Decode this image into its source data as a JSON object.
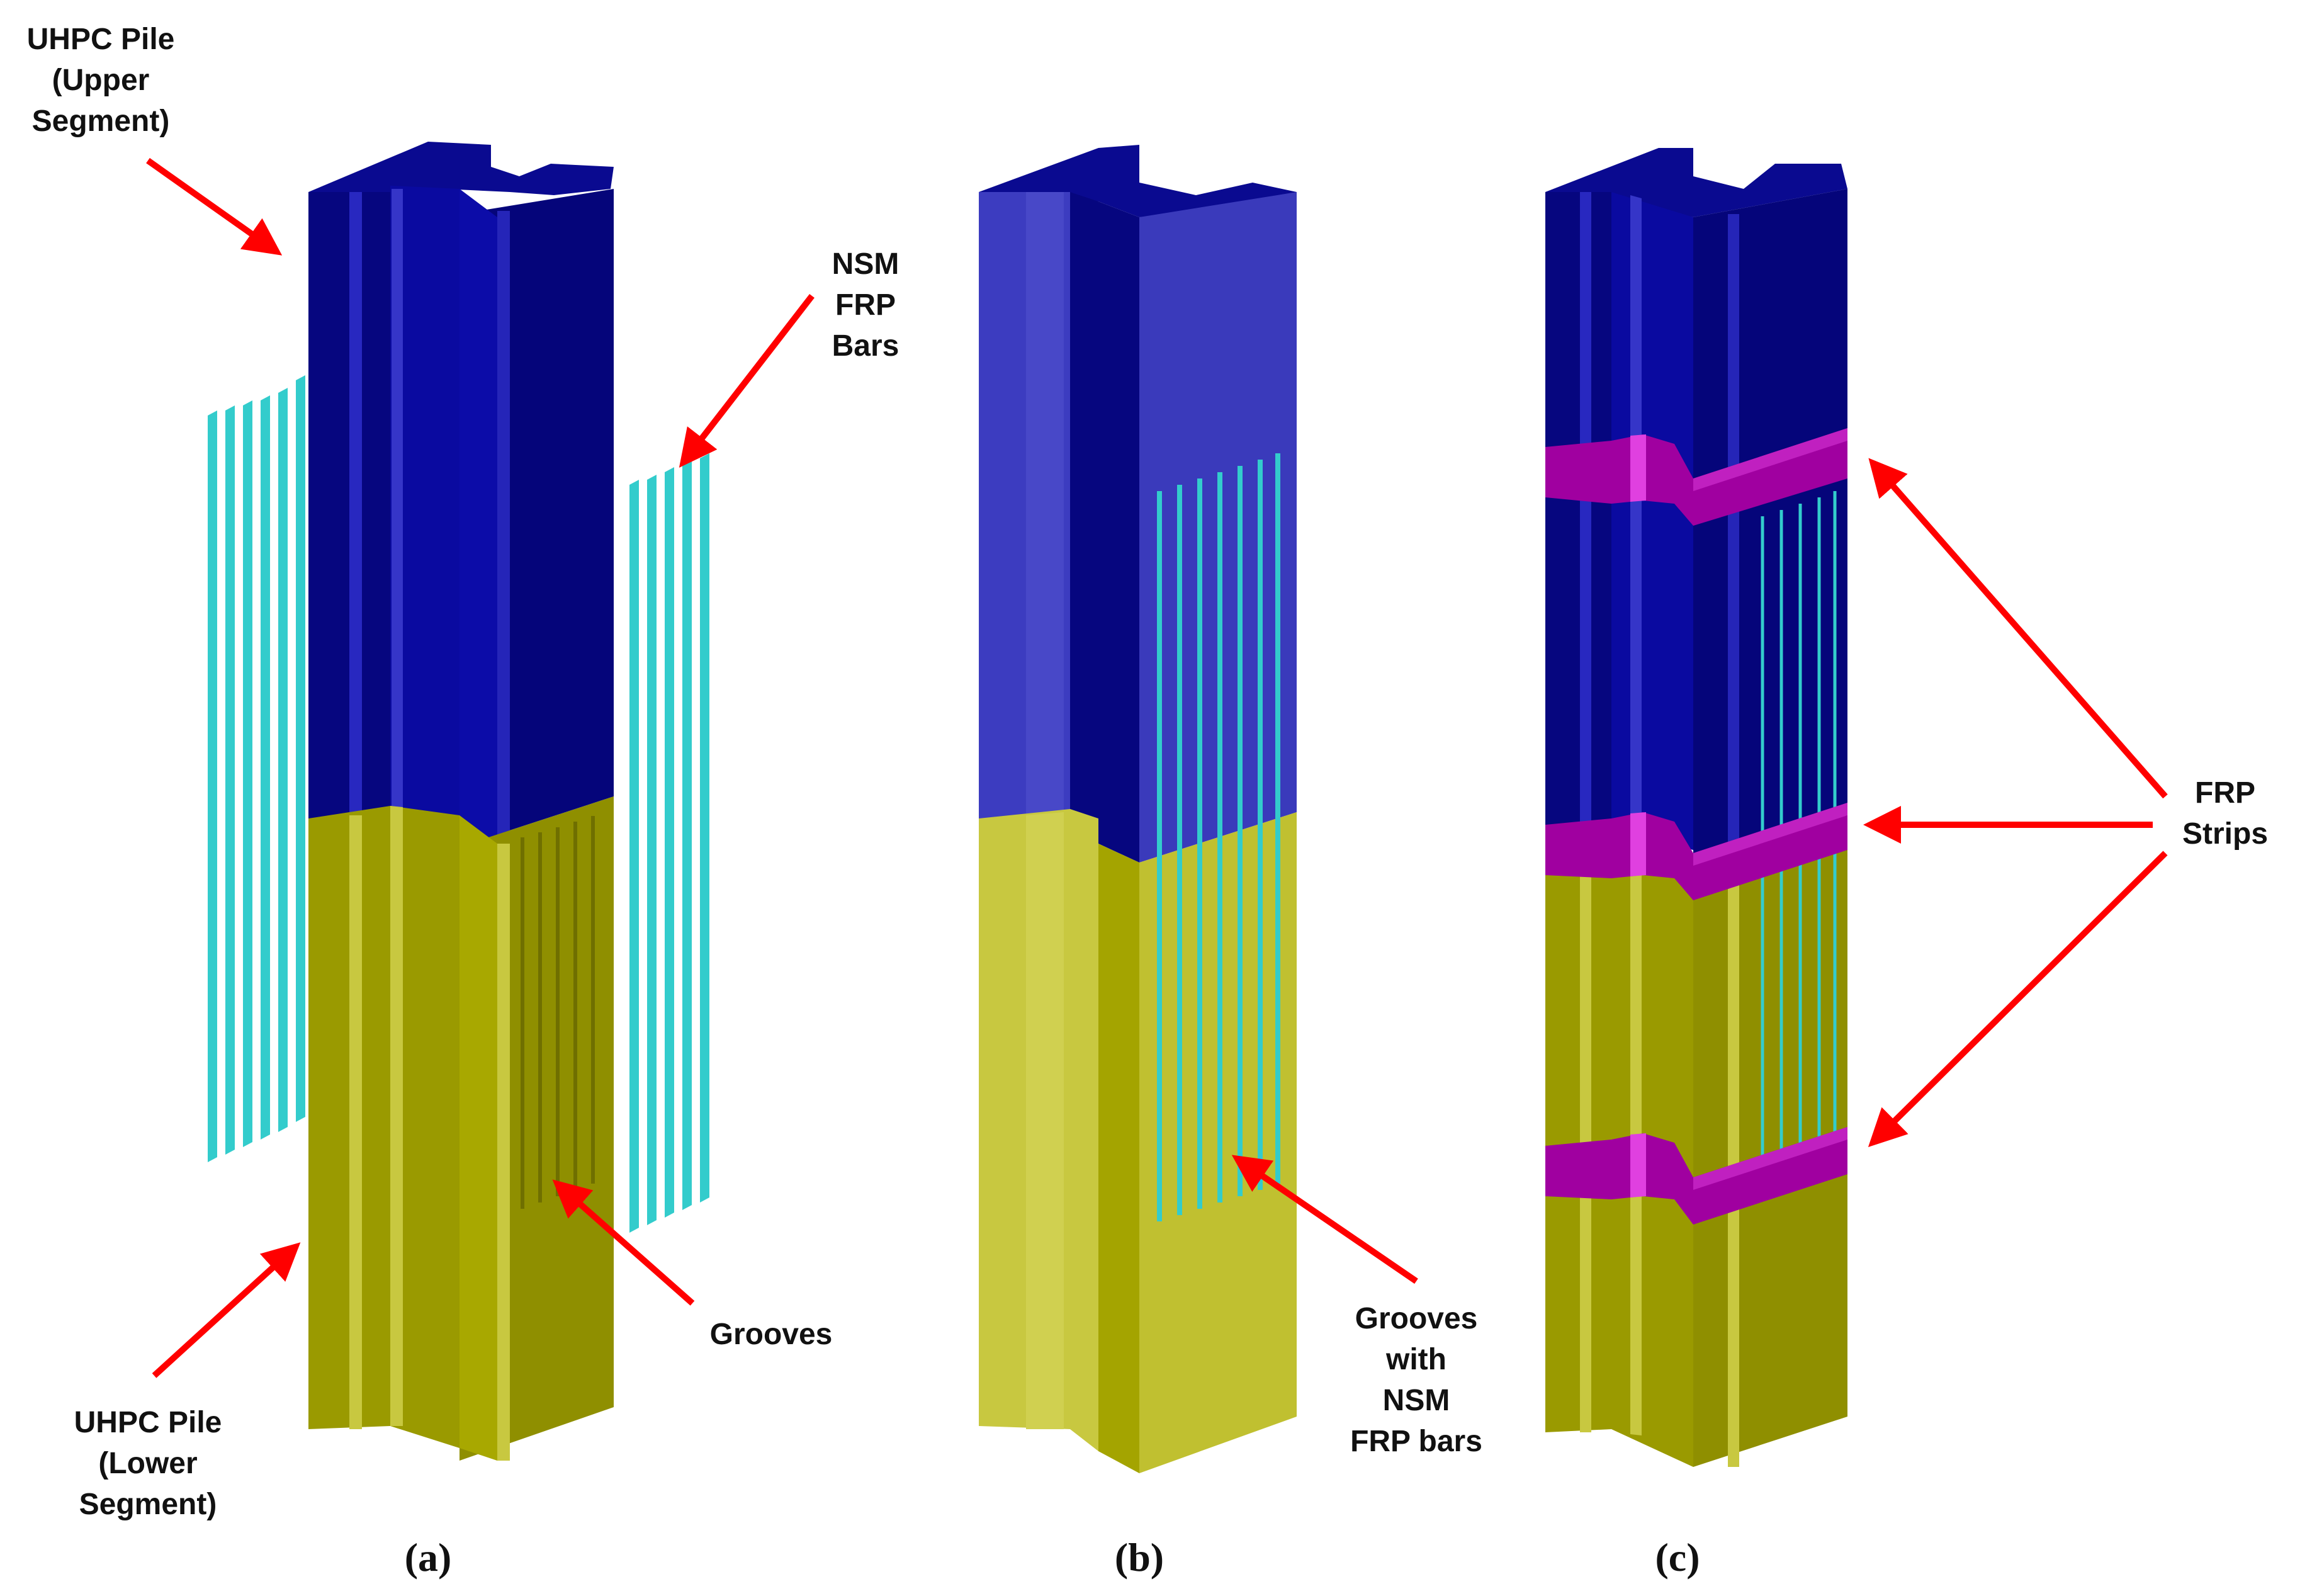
{
  "colors": {
    "upper_front": "#06067f",
    "upper_side": "#0a0aa0",
    "upper_top": "#0d0d9a",
    "upper_b_side": "#3c3cc0",
    "lower_front": "#8f8f00",
    "lower_side": "#a4a400",
    "lower_light": "#c8c840",
    "bar": "#33cccc",
    "bar_dark": "#1a8f8f",
    "strip": "#a000a0",
    "strip_light": "#e040e0",
    "arrow": "#ff0000",
    "text": "#111111"
  },
  "labels": {
    "upper_segment": [
      "UHPC Pile",
      "(Upper",
      "Segment)"
    ],
    "lower_segment": [
      "UHPC Pile",
      "(Lower",
      "Segment)"
    ],
    "nsm_bars": [
      "NSM",
      "FRP",
      "Bars"
    ],
    "grooves": "Grooves",
    "grooves_with_bars": [
      "Grooves",
      "with",
      "NSM",
      "FRP bars"
    ],
    "frp_strips": [
      "FRP",
      "Strips"
    ]
  },
  "captions": [
    "(a)",
    "(b)",
    "(c)"
  ]
}
